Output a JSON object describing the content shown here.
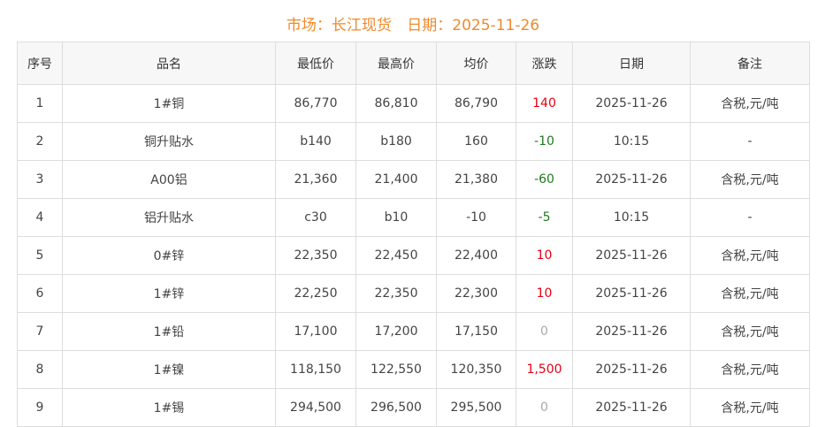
{
  "header": {
    "market_label": "市场：长江现货",
    "date_label": "日期：2025-11-26"
  },
  "colors": {
    "title": "#f0892a",
    "up": "#e60012",
    "down": "#1f7a1f",
    "flat": "#aaaaaa"
  },
  "table": {
    "columns": [
      "序号",
      "品名",
      "最低价",
      "最高价",
      "均价",
      "涨跌",
      "日期",
      "备注"
    ],
    "rows": [
      [
        "1",
        "1#铜",
        "86,770",
        "86,810",
        "86,790",
        "140",
        "2025-11-26",
        "含税,元/吨"
      ],
      [
        "2",
        "铜升贴水",
        "b140",
        "b180",
        "160",
        "-10",
        "10:15",
        "-"
      ],
      [
        "3",
        "A00铝",
        "21,360",
        "21,400",
        "21,380",
        "-60",
        "2025-11-26",
        "含税,元/吨"
      ],
      [
        "4",
        "铝升贴水",
        "c30",
        "b10",
        "-10",
        "-5",
        "10:15",
        "-"
      ],
      [
        "5",
        "0#锌",
        "22,350",
        "22,450",
        "22,400",
        "10",
        "2025-11-26",
        "含税,元/吨"
      ],
      [
        "6",
        "1#锌",
        "22,250",
        "22,350",
        "22,300",
        "10",
        "2025-11-26",
        "含税,元/吨"
      ],
      [
        "7",
        "1#铅",
        "17,100",
        "17,200",
        "17,150",
        "0",
        "2025-11-26",
        "含税,元/吨"
      ],
      [
        "8",
        "1#镍",
        "118,150",
        "122,550",
        "120,350",
        "1,500",
        "2025-11-26",
        "含税,元/吨"
      ],
      [
        "9",
        "1#锡",
        "294,500",
        "296,500",
        "295,500",
        "0",
        "2025-11-26",
        "含税,元/吨"
      ]
    ]
  }
}
